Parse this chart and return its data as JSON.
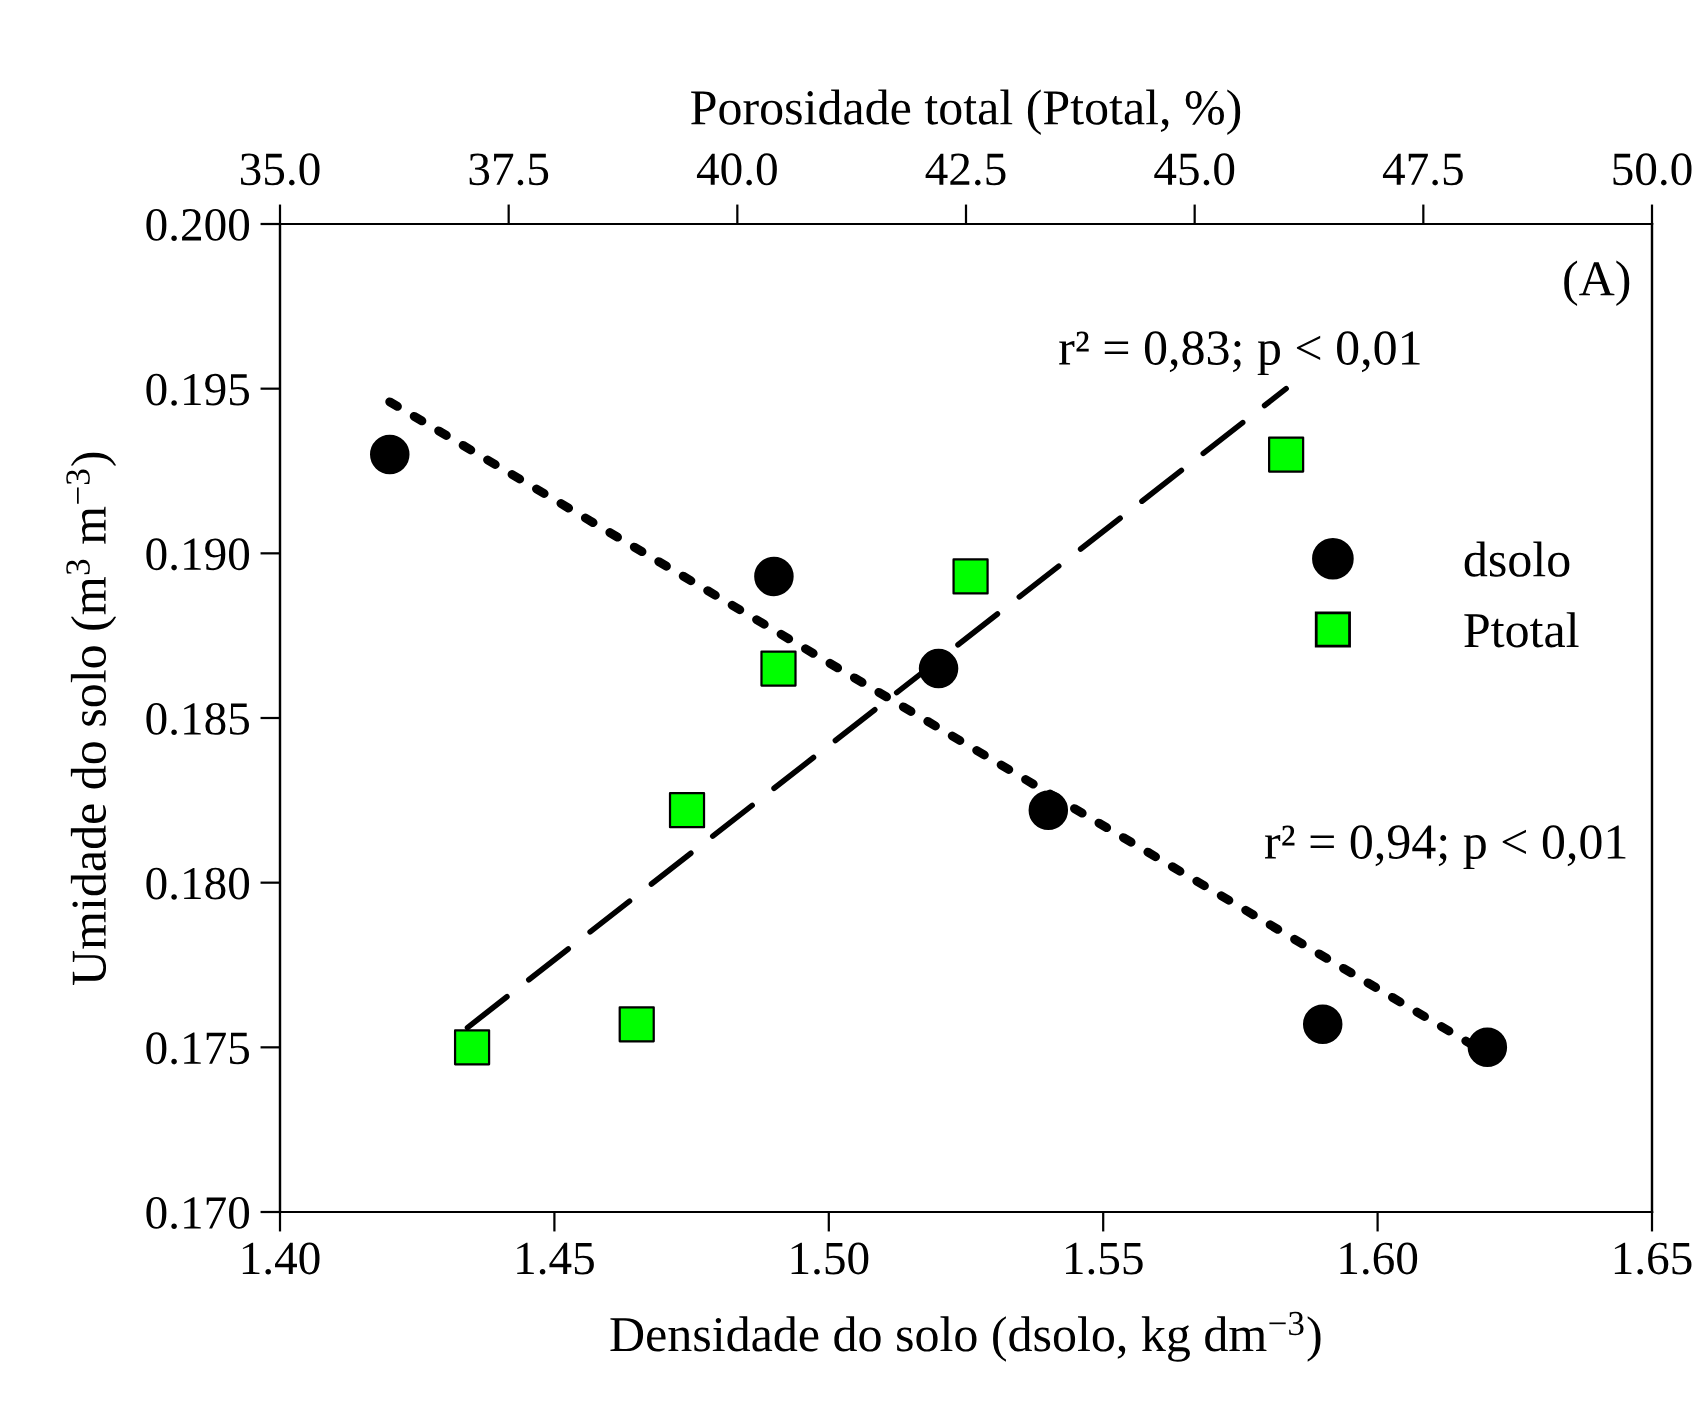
{
  "chart_data": {
    "type": "scatter",
    "xlabel": "Densidade do solo (dsolo, kg dm$^{−3}$)",
    "x2label": "Porosidade total (Ptotal, %)",
    "ylabel": "Umidade do solo (m$^{3}$ m$^{−3}$)",
    "xlim": [
      1.4,
      1.65
    ],
    "xticks": [
      {
        "value": 1.4,
        "label": "1.40"
      },
      {
        "value": 1.45,
        "label": "1.45"
      },
      {
        "value": 1.5,
        "label": "1.50"
      },
      {
        "value": 1.55,
        "label": "1.55"
      },
      {
        "value": 1.6,
        "label": "1.60"
      },
      {
        "value": 1.65,
        "label": "1.65"
      }
    ],
    "x2lim": [
      35.0,
      50.0
    ],
    "x2ticks": [
      {
        "value": 35,
        "label": "35.0"
      },
      37.5,
      {
        "value": 40,
        "label": "40.0"
      },
      42.5,
      {
        "value": 45,
        "label": "45.0"
      },
      47.5,
      {
        "value": 50,
        "label": "50.0"
      }
    ],
    "ylim": [
      0.17,
      0.2
    ],
    "yticks": [
      {
        "value": 0.17,
        "label": "0.170"
      },
      0.175,
      {
        "value": 0.18,
        "label": "0.180"
      },
      0.185,
      {
        "value": 0.19,
        "label": "0.190"
      },
      0.195,
      {
        "value": 0.2,
        "label": "0.200"
      }
    ],
    "grid": false,
    "legend": "right",
    "series": [
      {
        "name": "dsolo",
        "marker": "circle",
        "color": "#000000",
        "x": [
          1.42,
          1.49,
          1.52,
          1.54,
          1.59,
          1.62
        ],
        "values": [
          0.193,
          0.1893,
          0.1865,
          0.1822,
          0.1757,
          0.175
        ]
      },
      {
        "name": "Ptotal",
        "marker": "square",
        "color": "#00ff00",
        "axis": "x2",
        "x": [
          37.1,
          38.9,
          39.45,
          40.45,
          42.55,
          46.0
        ],
        "values": [
          0.175,
          0.1757,
          0.1822,
          0.1865,
          0.1893,
          0.193
        ]
      },
      {
        "type": "line",
        "line_style": "dotted",
        "color": "#000000",
        "x": [
          1.42,
          1.617
        ],
        "values": [
          0.1946,
          0.1751
        ]
      },
      {
        "type": "line",
        "line_style": "dashed",
        "color": "#000000",
        "axis": "x2",
        "x": [
          37.05,
          46.0
        ],
        "values": [
          0.1756,
          0.195
        ]
      }
    ],
    "annotations": [
      "(A)",
      "r² = 0,83; p < 0,01",
      "r² = 0,94; p < 0,01"
    ]
  }
}
